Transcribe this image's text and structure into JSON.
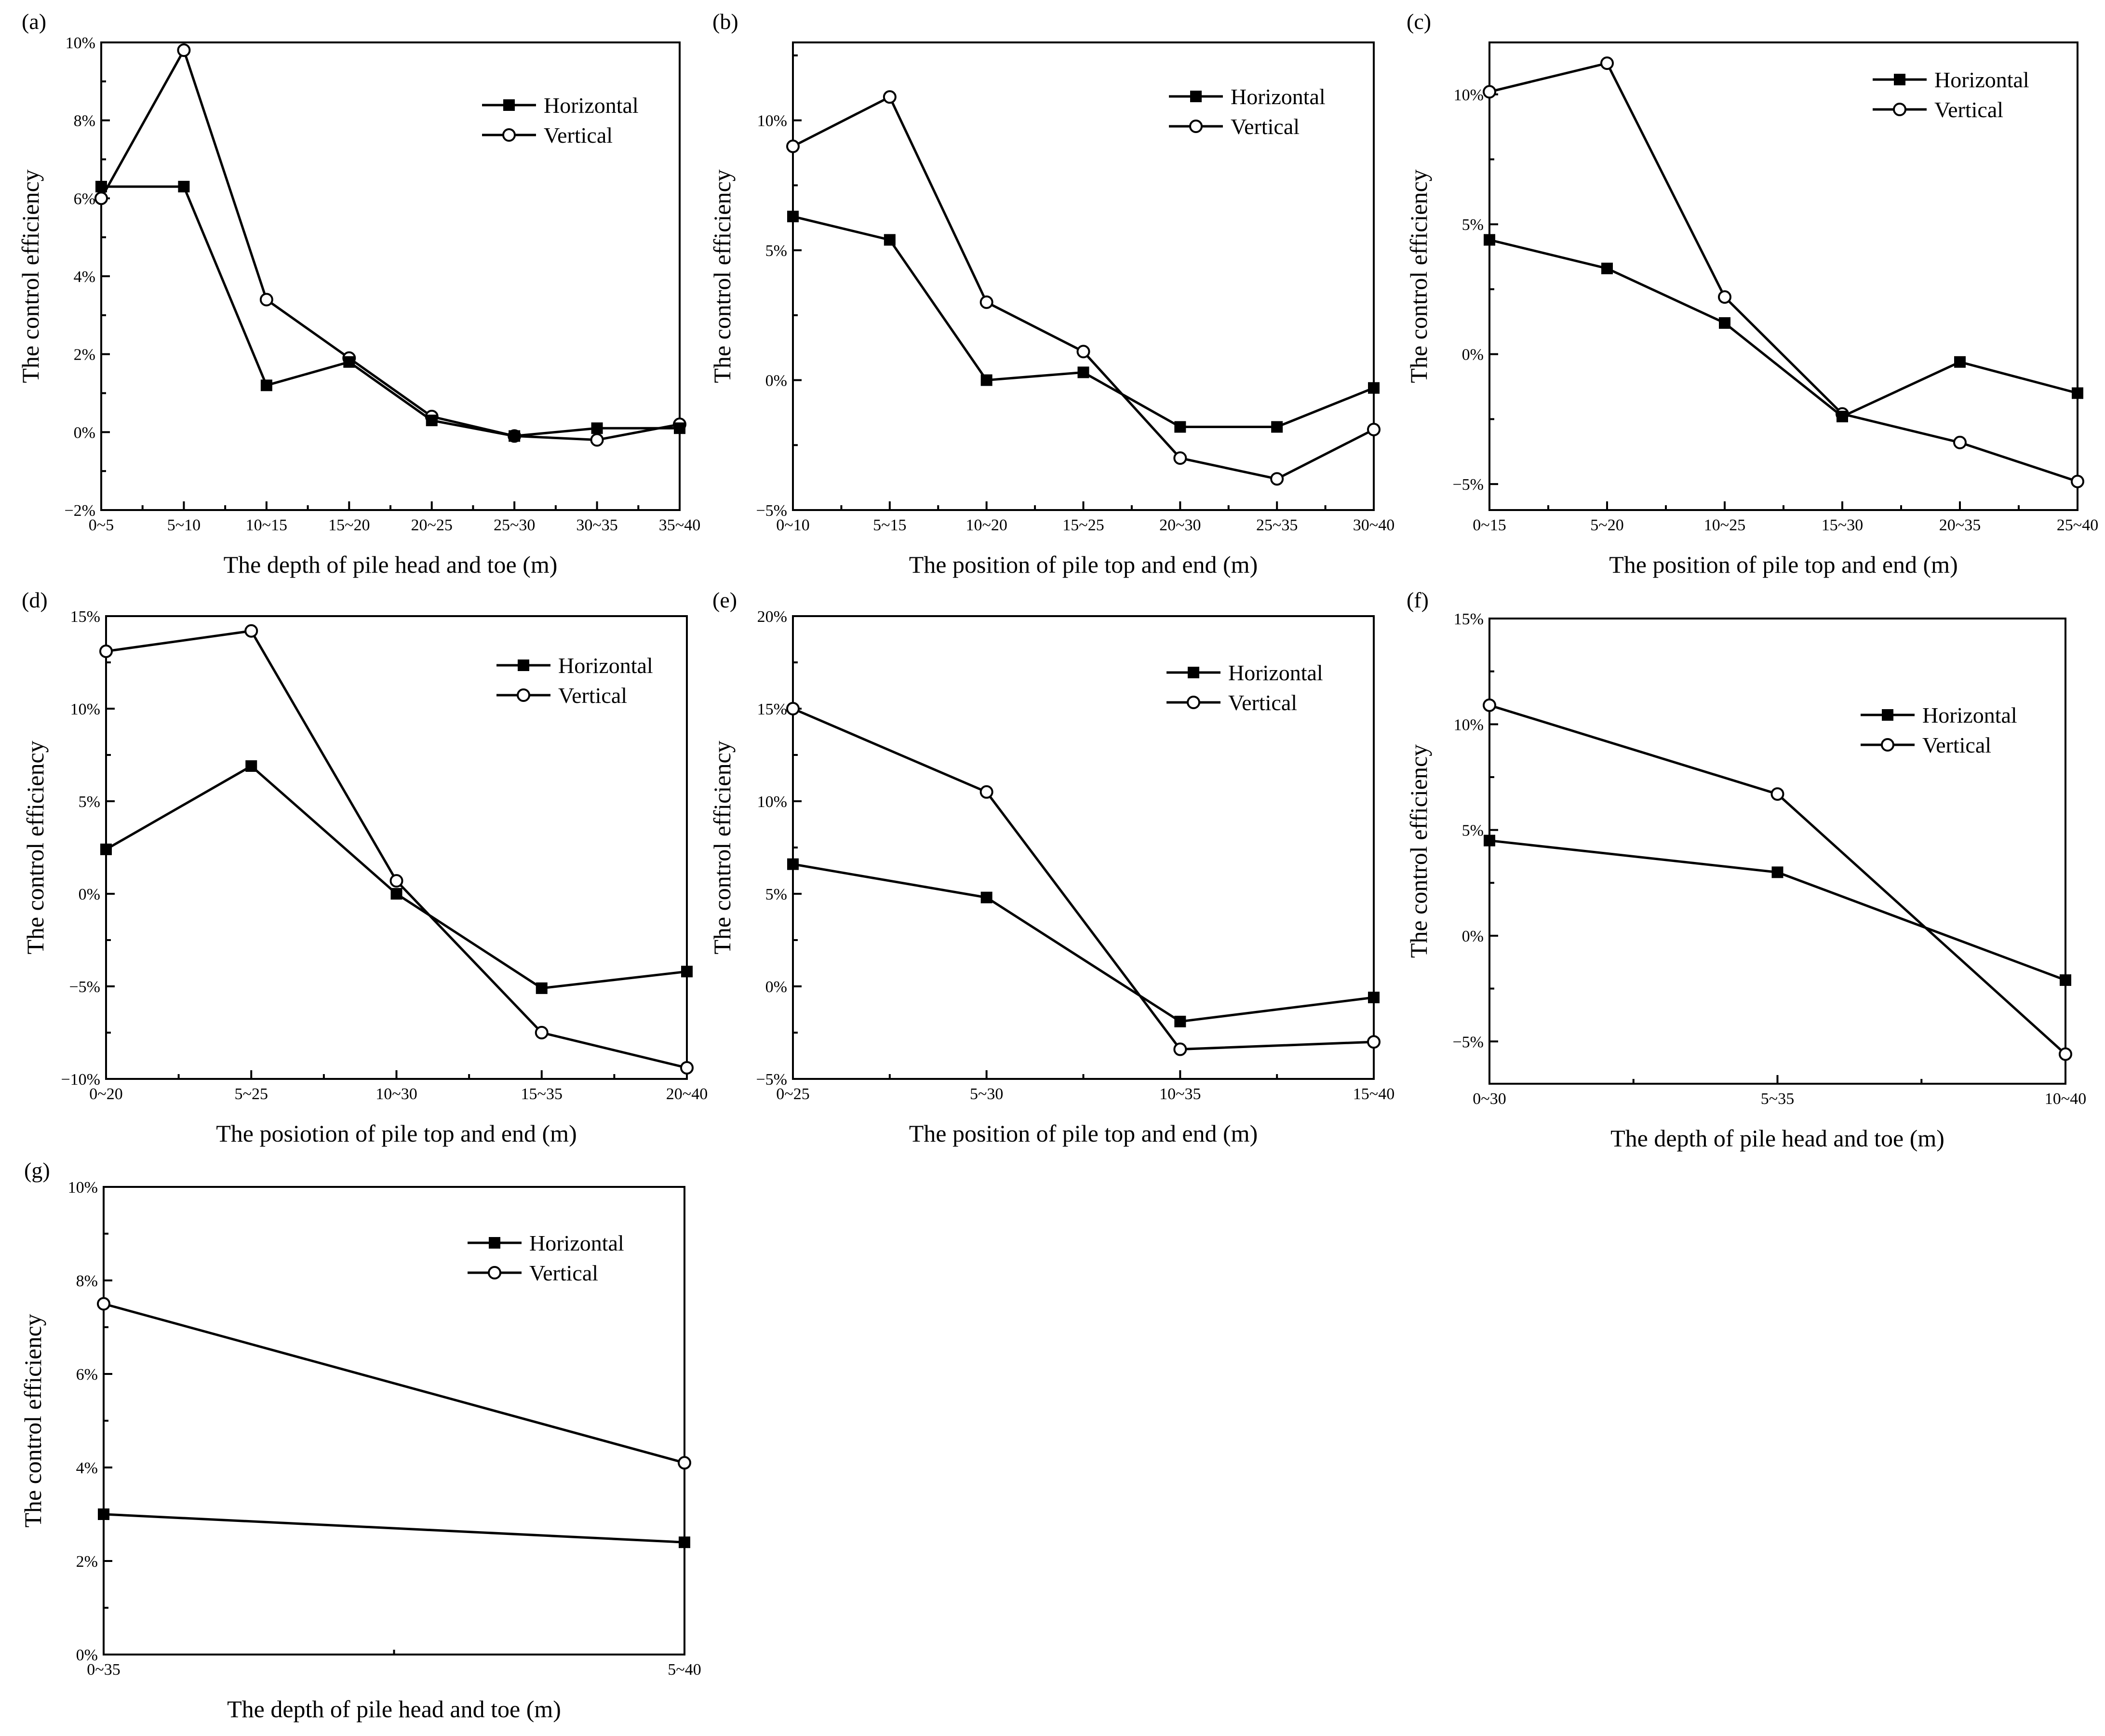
{
  "chart_data": [
    {
      "type": "line",
      "panel_label": "(a)",
      "categories": [
        "0~5",
        "5~10",
        "10~15",
        "15~20",
        "20~25",
        "25~30",
        "30~35",
        "35~40"
      ],
      "series": [
        {
          "name": "Horizontal",
          "marker": "square",
          "values": [
            6.3,
            6.3,
            1.2,
            1.8,
            0.3,
            -0.1,
            0.1,
            0.1
          ]
        },
        {
          "name": "Vertical",
          "marker": "circle",
          "values": [
            6.0,
            9.8,
            3.4,
            1.9,
            0.4,
            -0.1,
            -0.2,
            0.2
          ]
        }
      ],
      "xlabel": "The depth of pile head and toe (m)",
      "ylabel": "The control efficiency",
      "ylim": [
        -2,
        10
      ],
      "yticks": [
        -2,
        0,
        2,
        4,
        6,
        8,
        10
      ],
      "ytick_labels": [
        "−2%",
        "0%",
        "2%",
        "4%",
        "6%",
        "8%",
        "10%"
      ],
      "legend_position": "top-right"
    },
    {
      "type": "line",
      "panel_label": "(b)",
      "categories": [
        "0~10",
        "5~15",
        "10~20",
        "15~25",
        "20~30",
        "25~35",
        "30~40"
      ],
      "series": [
        {
          "name": "Horizontal",
          "marker": "square",
          "values": [
            6.3,
            5.4,
            0.0,
            0.3,
            -1.8,
            -1.8,
            -0.3
          ]
        },
        {
          "name": "Vertical",
          "marker": "circle",
          "values": [
            9.0,
            10.9,
            3.0,
            1.1,
            -3.0,
            -3.8,
            -1.9
          ]
        }
      ],
      "xlabel": "The position of pile top and end (m)",
      "ylabel": "The control efficiency",
      "ylim": [
        -5,
        13
      ],
      "yticks": [
        -5,
        0,
        5,
        10
      ],
      "ytick_labels": [
        "−5%",
        "0%",
        "5%",
        "10%"
      ],
      "legend_position": "top-right"
    },
    {
      "type": "line",
      "panel_label": "(c)",
      "categories": [
        "0~15",
        "5~20",
        "10~25",
        "15~30",
        "20~35",
        "25~40"
      ],
      "series": [
        {
          "name": "Horizontal",
          "marker": "square",
          "values": [
            4.4,
            3.3,
            1.2,
            -2.4,
            -0.3,
            -1.5
          ]
        },
        {
          "name": "Vertical",
          "marker": "circle",
          "values": [
            10.1,
            11.2,
            2.2,
            -2.3,
            -3.4,
            -4.9
          ]
        }
      ],
      "xlabel": "The position of pile top and end (m)",
      "ylabel": "The control efficiency",
      "ylim": [
        -6,
        12
      ],
      "yticks": [
        -5,
        0,
        5,
        10
      ],
      "ytick_labels": [
        "−5%",
        "0%",
        "5%",
        "10%"
      ],
      "legend_position": "top-right"
    },
    {
      "type": "line",
      "panel_label": "(d)",
      "categories": [
        "0~20",
        "5~25",
        "10~30",
        "15~35",
        "20~40"
      ],
      "series": [
        {
          "name": "Horizontal",
          "marker": "square",
          "values": [
            2.4,
            6.9,
            0.0,
            -5.1,
            -4.2
          ]
        },
        {
          "name": "Vertical",
          "marker": "circle",
          "values": [
            13.1,
            14.2,
            0.7,
            -7.5,
            -9.4
          ]
        }
      ],
      "xlabel": "The posiotion of pile top and end (m)",
      "ylabel": "The control efficiency",
      "ylim": [
        -10,
        15
      ],
      "yticks": [
        -10,
        -5,
        0,
        5,
        10,
        15
      ],
      "ytick_labels": [
        "−10%",
        "−5%",
        "0%",
        "5%",
        "10%",
        "15%"
      ],
      "legend_position": "top-right"
    },
    {
      "type": "line",
      "panel_label": "(e)",
      "categories": [
        "0~25",
        "5~30",
        "10~35",
        "15~40"
      ],
      "series": [
        {
          "name": "Horizontal",
          "marker": "square",
          "values": [
            6.6,
            4.8,
            -1.9,
            -0.6
          ]
        },
        {
          "name": "Vertical",
          "marker": "circle",
          "values": [
            15.0,
            10.5,
            -3.4,
            -3.0
          ]
        }
      ],
      "xlabel": "The position of pile top and end (m)",
      "ylabel": "The control efficiency",
      "ylim": [
        -5,
        20
      ],
      "yticks": [
        -5,
        0,
        5,
        10,
        15,
        20
      ],
      "ytick_labels": [
        "−5%",
        "0%",
        "5%",
        "10%",
        "15%",
        "20%"
      ],
      "legend_position": "top-right"
    },
    {
      "type": "line",
      "panel_label": "(f)",
      "categories": [
        "0~30",
        "5~35",
        "10~40"
      ],
      "series": [
        {
          "name": "Horizontal",
          "marker": "square",
          "values": [
            4.5,
            3.0,
            -2.1
          ]
        },
        {
          "name": "Vertical",
          "marker": "circle",
          "values": [
            10.9,
            6.7,
            -5.6
          ]
        }
      ],
      "xlabel": "The depth of pile head and toe (m)",
      "ylabel": "The control efficiency",
      "ylim": [
        -7,
        15
      ],
      "yticks": [
        -5,
        0,
        5,
        10,
        15
      ],
      "ytick_labels": [
        "−5%",
        "0%",
        "5%",
        "10%",
        "15%"
      ],
      "legend_position": "top-right"
    },
    {
      "type": "line",
      "panel_label": "(g)",
      "categories": [
        "0~35",
        "5~40"
      ],
      "series": [
        {
          "name": "Horizontal",
          "marker": "square",
          "values": [
            3.0,
            2.4
          ]
        },
        {
          "name": "Vertical",
          "marker": "circle",
          "values": [
            7.5,
            4.1
          ]
        }
      ],
      "xlabel": "The depth of pile head and toe (m)",
      "ylabel": "The control efficiency",
      "ylim": [
        0,
        10
      ],
      "yticks": [
        0,
        2,
        4,
        6,
        8,
        10
      ],
      "ytick_labels": [
        "0%",
        "2%",
        "4%",
        "6%",
        "8%",
        "10%"
      ],
      "legend_position": "top-right"
    }
  ]
}
